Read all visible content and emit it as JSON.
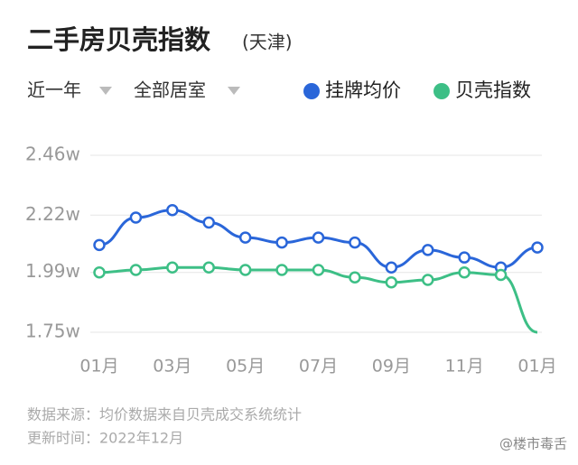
{
  "chart_data": {
    "type": "line",
    "title": "二手房贝壳指数",
    "subtitle": "(天津)",
    "filters": [
      "近一年",
      "全部居室"
    ],
    "categories": [
      "01月",
      null,
      "03月",
      null,
      "05月",
      null,
      "07月",
      null,
      "09月",
      null,
      "11月",
      null,
      "01月"
    ],
    "series": [
      {
        "name": "挂牌均价",
        "color": "#2a66d9",
        "values": [
          2.1,
          2.21,
          2.24,
          2.19,
          2.13,
          2.11,
          2.13,
          2.11,
          2.01,
          2.08,
          2.05,
          2.01,
          2.09
        ]
      },
      {
        "name": "贝壳指数",
        "color": "#3dbf86",
        "values": [
          1.99,
          2.0,
          2.01,
          2.01,
          2.0,
          2.0,
          2.0,
          1.97,
          1.95,
          1.96,
          1.99,
          1.98,
          1.75
        ]
      }
    ],
    "ylim": [
      1.75,
      2.46
    ],
    "yticks": [
      {
        "value": 1.75,
        "label": "1.75w"
      },
      {
        "value": 1.99,
        "label": "1.99w"
      },
      {
        "value": 2.22,
        "label": "2.22w"
      },
      {
        "value": 2.46,
        "label": "2.46w"
      }
    ],
    "grid": true,
    "legend": "top-right",
    "footer": [
      "数据来源：均价数据来自贝壳成交系统统计",
      "更新时间：2022年12月"
    ],
    "watermark": "@楼市毒舌"
  }
}
